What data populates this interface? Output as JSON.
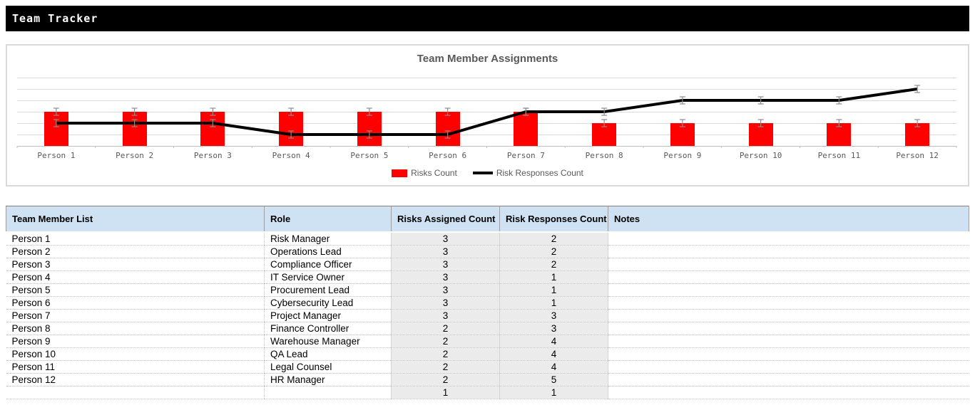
{
  "titlebar": {
    "title": "Team Tracker"
  },
  "chart": {
    "title": "Team Member Assignments",
    "accent_color": "#fe0000",
    "line_color": "#000000",
    "gridline_color": "#d9d9d9",
    "error_bar_color": "#8c8c8c",
    "label_color": "#595959"
  },
  "chart_data": {
    "type": "bar",
    "subtype": "combo bar+line with error bars",
    "title": "Team Member Assignments",
    "categories": [
      "Person 1",
      "Person 2",
      "Person 3",
      "Person 4",
      "Person 5",
      "Person 6",
      "Person 7",
      "Person 8",
      "Person 9",
      "Person 10",
      "Person 11",
      "Person 12"
    ],
    "series": [
      {
        "name": "Risks Count",
        "type": "bar",
        "color": "#fe0000",
        "values": [
          3,
          3,
          3,
          3,
          3,
          3,
          3,
          2,
          2,
          2,
          2,
          2
        ],
        "error_bars": 0.3
      },
      {
        "name": "Risk Responses Count",
        "type": "line",
        "color": "#000000",
        "values": [
          2,
          2,
          2,
          1,
          1,
          1,
          3,
          3,
          4,
          4,
          4,
          5
        ],
        "error_bars": 0.3
      }
    ],
    "xlabel": "",
    "ylabel": "",
    "ylim": [
      0,
      6
    ],
    "grid": true,
    "legend_position": "bottom"
  },
  "table": {
    "columns": [
      {
        "key": "member",
        "label": "Team Member List",
        "align": "left"
      },
      {
        "key": "role",
        "label": "Role",
        "align": "left"
      },
      {
        "key": "risks",
        "label": "Risks Assigned Count",
        "align": "center"
      },
      {
        "key": "responses",
        "label": "Risk Responses Count",
        "align": "center"
      },
      {
        "key": "notes",
        "label": "Notes",
        "align": "left"
      }
    ],
    "rows": [
      {
        "member": "Person 1",
        "role": "Risk Manager",
        "risks": "3",
        "responses": "2",
        "notes": ""
      },
      {
        "member": "Person 2",
        "role": "Operations Lead",
        "risks": "3",
        "responses": "2",
        "notes": ""
      },
      {
        "member": "Person 3",
        "role": "Compliance Officer",
        "risks": "3",
        "responses": "2",
        "notes": ""
      },
      {
        "member": "Person 4",
        "role": "IT Service Owner",
        "risks": "3",
        "responses": "1",
        "notes": ""
      },
      {
        "member": "Person 5",
        "role": "Procurement Lead",
        "risks": "3",
        "responses": "1",
        "notes": ""
      },
      {
        "member": "Person 6",
        "role": "Cybersecurity Lead",
        "risks": "3",
        "responses": "1",
        "notes": ""
      },
      {
        "member": "Person 7",
        "role": "Project Manager",
        "risks": "3",
        "responses": "3",
        "notes": ""
      },
      {
        "member": "Person 8",
        "role": "Finance Controller",
        "risks": "2",
        "responses": "3",
        "notes": ""
      },
      {
        "member": "Person 9",
        "role": "Warehouse Manager",
        "risks": "2",
        "responses": "4",
        "notes": ""
      },
      {
        "member": "Person 10",
        "role": "QA Lead",
        "risks": "2",
        "responses": "4",
        "notes": ""
      },
      {
        "member": "Person 11",
        "role": "Legal Counsel",
        "risks": "2",
        "responses": "4",
        "notes": ""
      },
      {
        "member": "Person 12",
        "role": "HR Manager",
        "risks": "2",
        "responses": "5",
        "notes": ""
      },
      {
        "member": "",
        "role": "",
        "risks": "1",
        "responses": "1",
        "notes": ""
      }
    ]
  }
}
